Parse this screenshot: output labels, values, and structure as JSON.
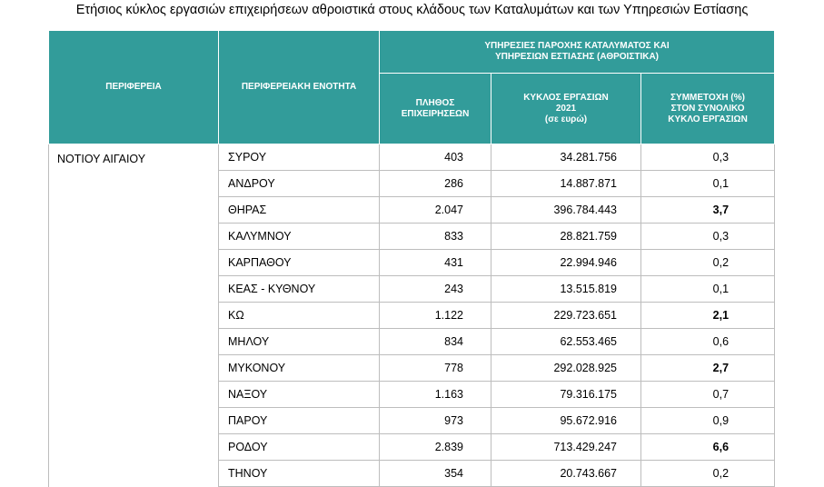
{
  "title": "Ετήσιος κύκλος εργασιών επιχειρήσεων αθροιστικά στους κλάδους των Καταλυμάτων και των Υπηρεσιών Εστίασης",
  "table": {
    "headers": {
      "region": "ΠΕΡΙΦΕΡΕΙΑ",
      "unit": "ΠΕΡΙΦΕΡΕΙΑΚΗ ΕΝΟΤΗΤΑ",
      "group": "ΥΠΗΡΕΣΙΕΣ ΠΑΡΟΧΗΣ ΚΑΤΑΛΥΜΑΤΟΣ ΚΑΙ\nΥΠΗΡΕΣΙΩΝ ΕΣΤΙΑΣΗΣ (ΑΘΡΟΙΣΤΙΚΑ)",
      "columns": [
        "ΠΛΗΘΟΣ\nΕΠΙΧΕΙΡΗΣΕΩΝ",
        "ΚΥΚΛΟΣ ΕΡΓΑΣΙΩΝ\n2021\n(σε ευρώ)",
        "ΣΥΜΜΕΤΟΧΗ (%)\nΣΤΟΝ ΣΥΝΟΛΙΚΟ\nΚΥΚΛΟ ΕΡΓΑΣΙΩΝ"
      ]
    },
    "region": "ΝΟΤΙΟΥ ΑΙΓΑΙΟΥ",
    "rows": [
      {
        "unit": "ΣΥΡΟΥ",
        "count": "403",
        "turnover": "34.281.756",
        "share": "0,3",
        "bold": false
      },
      {
        "unit": "ΑΝΔΡΟΥ",
        "count": "286",
        "turnover": "14.887.871",
        "share": "0,1",
        "bold": false
      },
      {
        "unit": "ΘΗΡΑΣ",
        "count": "2.047",
        "turnover": "396.784.443",
        "share": "3,7",
        "bold": true
      },
      {
        "unit": "ΚΑΛΥΜΝΟΥ",
        "count": "833",
        "turnover": "28.821.759",
        "share": "0,3",
        "bold": false
      },
      {
        "unit": "ΚΑΡΠΑΘΟΥ",
        "count": "431",
        "turnover": "22.994.946",
        "share": "0,2",
        "bold": false
      },
      {
        "unit": "ΚΕΑΣ - ΚΥΘΝΟΥ",
        "count": "243",
        "turnover": "13.515.819",
        "share": "0,1",
        "bold": false
      },
      {
        "unit": "ΚΩ",
        "count": "1.122",
        "turnover": "229.723.651",
        "share": "2,1",
        "bold": true
      },
      {
        "unit": "ΜΗΛΟΥ",
        "count": "834",
        "turnover": "62.553.465",
        "share": "0,6",
        "bold": false
      },
      {
        "unit": "ΜΥΚΟΝΟΥ",
        "count": "778",
        "turnover": "292.028.925",
        "share": "2,7",
        "bold": true
      },
      {
        "unit": "ΝΑΞΟΥ",
        "count": "1.163",
        "turnover": "79.316.175",
        "share": "0,7",
        "bold": false
      },
      {
        "unit": "ΠΑΡΟΥ",
        "count": "973",
        "turnover": "95.672.916",
        "share": "0,9",
        "bold": false
      },
      {
        "unit": "ΡΟΔΟΥ",
        "count": "2.839",
        "turnover": "713.429.247",
        "share": "6,6",
        "bold": true
      },
      {
        "unit": "ΤΗΝΟΥ",
        "count": "354",
        "turnover": "20.743.667",
        "share": "0,2",
        "bold": false
      }
    ]
  }
}
